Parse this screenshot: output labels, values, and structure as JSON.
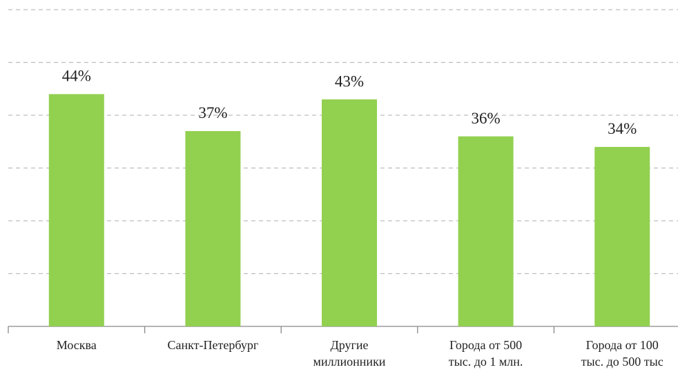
{
  "chart_data": {
    "type": "bar",
    "categories": [
      [
        "Москва"
      ],
      [
        "Санкт-Петербург"
      ],
      [
        "Другие",
        "миллионники"
      ],
      [
        "Города от 500",
        "тыс. до 1 млн."
      ],
      [
        "Города от 100",
        "тыс. до 500 тыс"
      ]
    ],
    "values": [
      44,
      37,
      43,
      36,
      34
    ],
    "value_labels": [
      "44%",
      "37%",
      "43%",
      "36%",
      "34%"
    ],
    "color": "#92d050",
    "ylim": [
      0,
      60
    ],
    "yticks": [
      10,
      20,
      30,
      40,
      50,
      60
    ],
    "grid": true
  }
}
